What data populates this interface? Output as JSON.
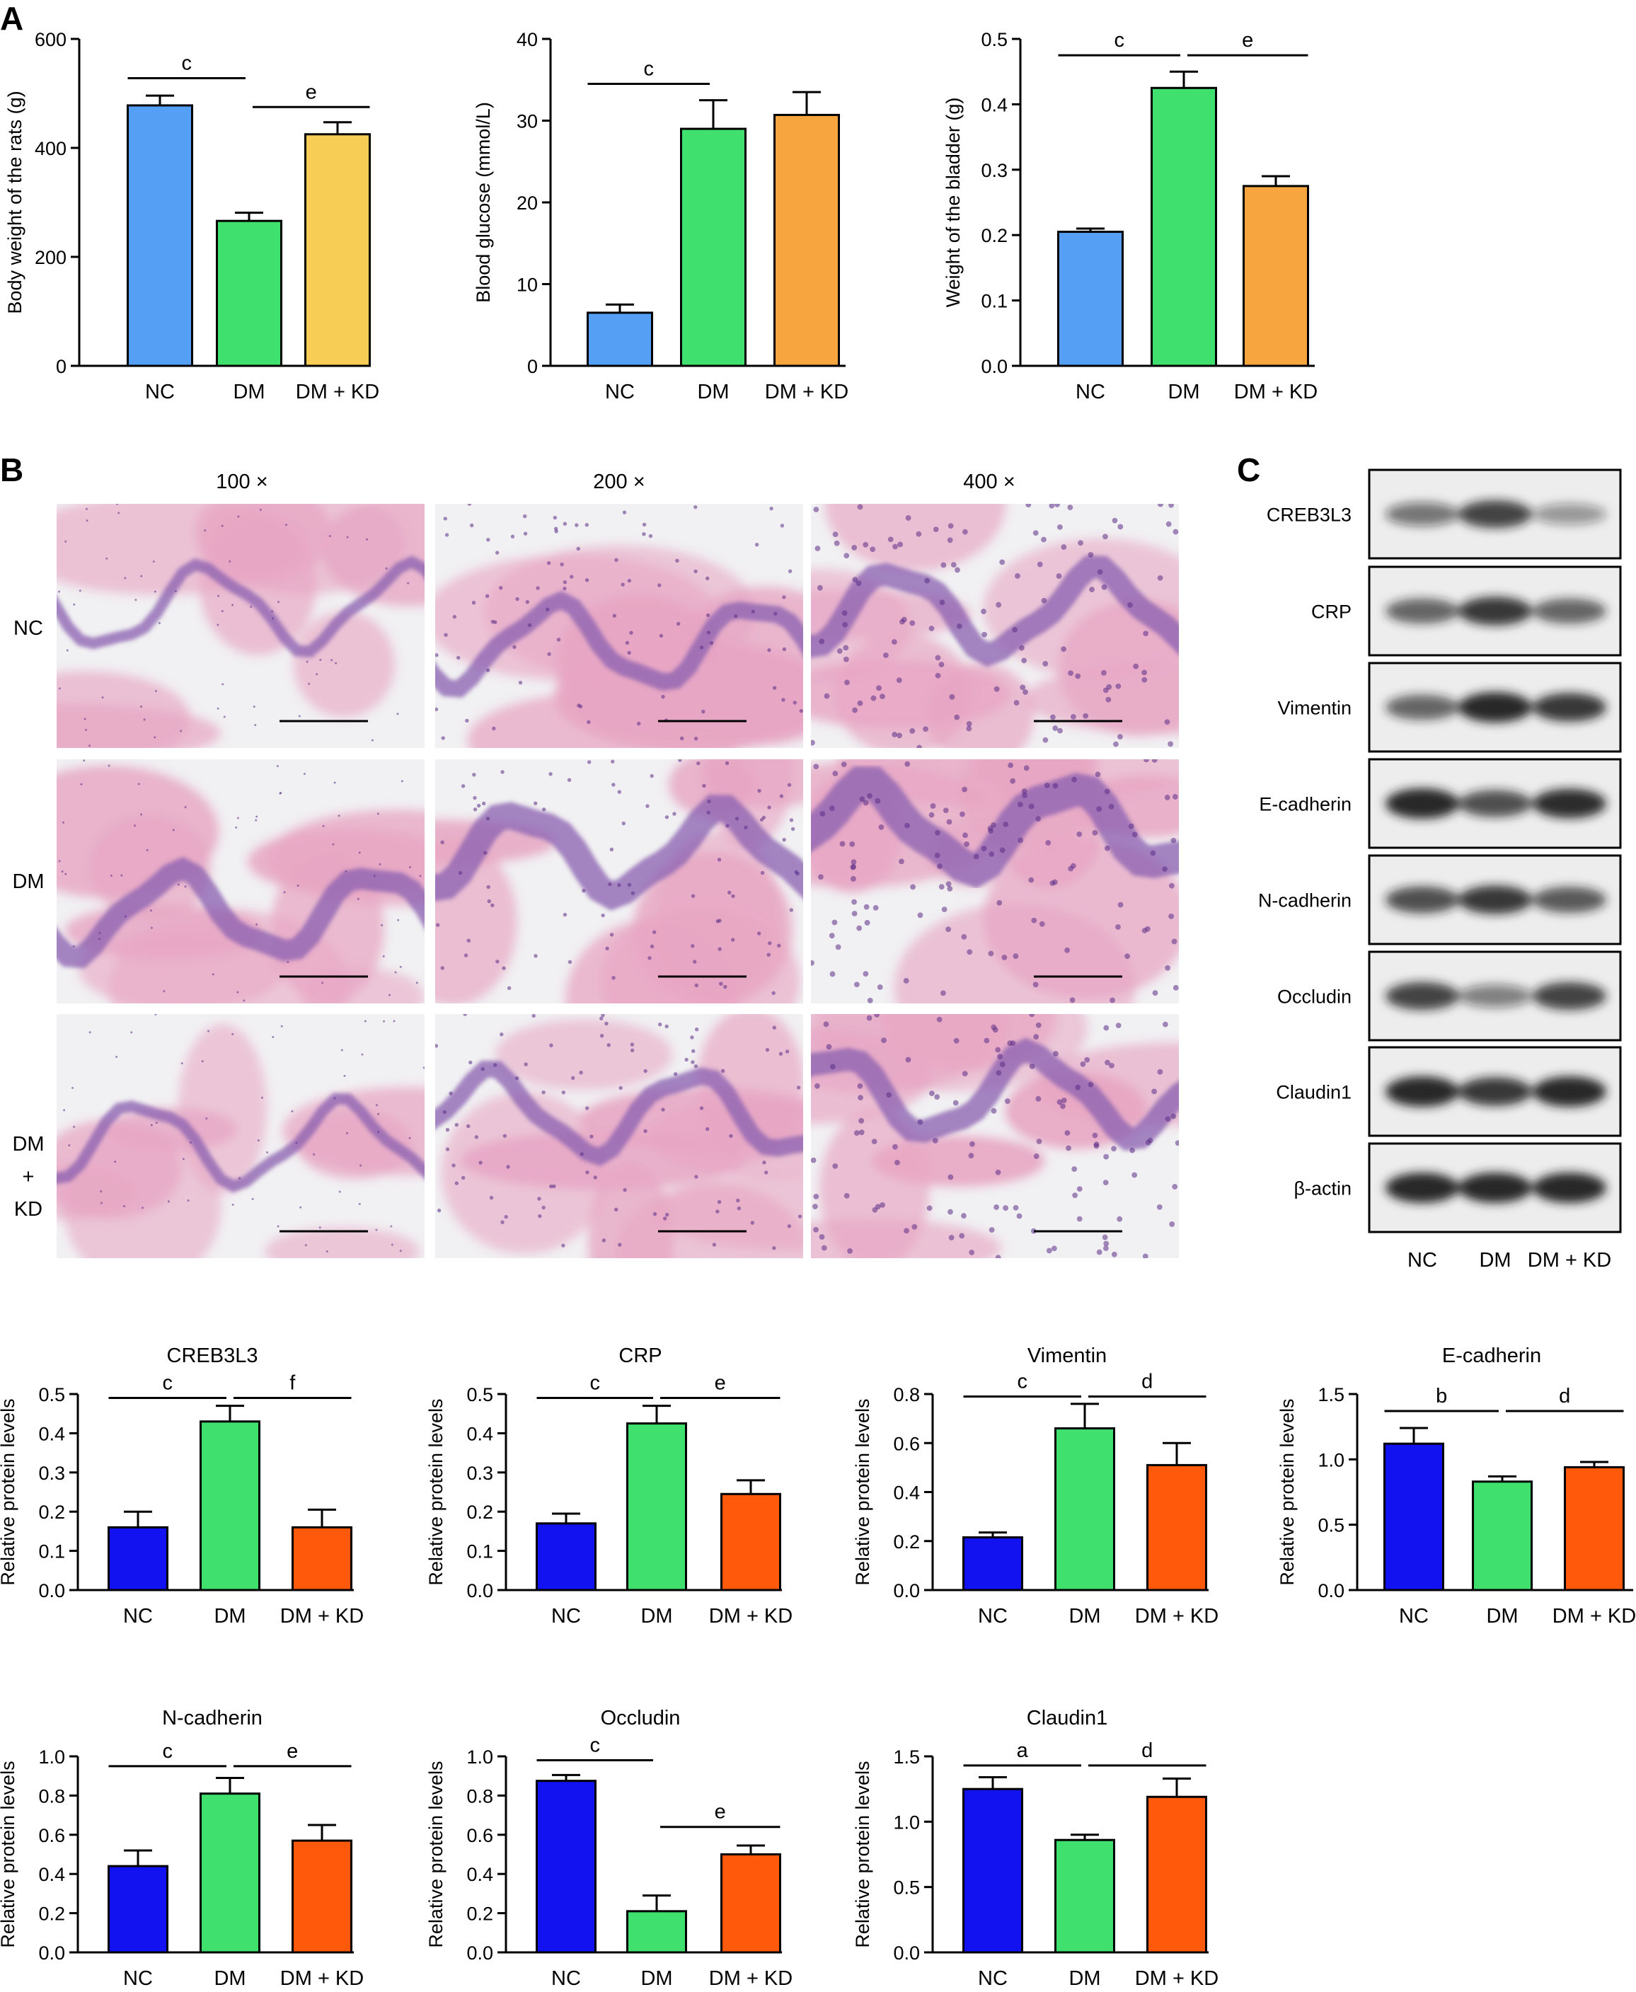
{
  "panel_labels": {
    "A": "A",
    "B": "B",
    "C": "C"
  },
  "colors": {
    "nc_blue_a": "#55A0F5",
    "dm_green": "#3FE06E",
    "dmkd_yellow": "#F8CD55",
    "dmkd_orange": "#F7A63F",
    "nc_blue_c": "#1212F0",
    "dmkd_red": "#FF5A0C",
    "tissue_pink": "#E7A6C3",
    "tissue_purple": "#8A5FB0",
    "blot_band": "#1A1A1A"
  },
  "histology": {
    "column_headers": [
      "100 ×",
      "200 ×",
      "400 ×"
    ],
    "row_labels": [
      [
        "NC"
      ],
      [
        "DM"
      ],
      [
        "DM",
        "+",
        "KD"
      ]
    ]
  },
  "western_blot": {
    "proteins": [
      "CREB3L3",
      "CRP",
      "Vimentin",
      "E-cadherin",
      "N-cadherin",
      "Occludin",
      "Claudin1",
      "β-actin"
    ],
    "lanes": [
      "NC",
      "DM",
      "DM + KD"
    ],
    "band_intensity": [
      [
        0.55,
        0.8,
        0.4
      ],
      [
        0.65,
        0.85,
        0.65
      ],
      [
        0.65,
        0.95,
        0.85
      ],
      [
        0.95,
        0.75,
        0.9
      ],
      [
        0.75,
        0.85,
        0.7
      ],
      [
        0.8,
        0.5,
        0.8
      ],
      [
        0.95,
        0.85,
        0.95
      ],
      [
        0.95,
        0.95,
        0.95
      ]
    ]
  },
  "chart_data": [
    {
      "type": "bar",
      "title": "",
      "ylabel": "Body weight of the rats (g)",
      "categories": [
        "NC",
        "DM",
        "DM + KD"
      ],
      "values": [
        478,
        266,
        425
      ],
      "errors": [
        18,
        15,
        22
      ],
      "ylim": [
        0,
        600
      ],
      "yticks": [
        "0",
        "200",
        "400",
        "600"
      ],
      "colors": [
        "#55A0F5",
        "#3FE06E",
        "#F8CD55"
      ],
      "sig": [
        {
          "from": 0,
          "to": 1,
          "label": "c",
          "y": 528
        },
        {
          "from": 1,
          "to": 2,
          "label": "e",
          "y": 475
        }
      ]
    },
    {
      "type": "bar",
      "title": "",
      "ylabel": "Blood glucose (mmol/L)",
      "categories": [
        "NC",
        "DM",
        "DM + KD"
      ],
      "values": [
        6.5,
        29,
        30.7
      ],
      "errors": [
        1,
        3.5,
        2.8
      ],
      "ylim": [
        0,
        40
      ],
      "yticks": [
        "0",
        "10",
        "20",
        "30",
        "40"
      ],
      "colors": [
        "#55A0F5",
        "#3FE06E",
        "#F7A63F"
      ],
      "sig": [
        {
          "from": 0,
          "to": 1,
          "label": "c",
          "y": 34.5
        }
      ]
    },
    {
      "type": "bar",
      "title": "",
      "ylabel": "Weight of the bladder (g)",
      "categories": [
        "NC",
        "DM",
        "DM + KD"
      ],
      "values": [
        0.205,
        0.425,
        0.275
      ],
      "errors": [
        0.005,
        0.025,
        0.015
      ],
      "ylim": [
        0,
        0.5
      ],
      "yticks": [
        "0.0",
        "0.1",
        "0.2",
        "0.3",
        "0.4",
        "0.5"
      ],
      "colors": [
        "#55A0F5",
        "#3FE06E",
        "#F7A63F"
      ],
      "sig": [
        {
          "from": 0,
          "to": 1,
          "label": "c",
          "y": 0.475
        },
        {
          "from": 1,
          "to": 2,
          "label": "e",
          "y": 0.475
        }
      ]
    },
    {
      "type": "bar",
      "title": "CREB3L3",
      "ylabel": "Relative protein levels",
      "categories": [
        "NC",
        "DM",
        "DM + KD"
      ],
      "values": [
        0.16,
        0.43,
        0.16
      ],
      "errors": [
        0.04,
        0.04,
        0.045
      ],
      "ylim": [
        0,
        0.5
      ],
      "yticks": [
        "0.0",
        "0.1",
        "0.2",
        "0.3",
        "0.4",
        "0.5"
      ],
      "colors": [
        "#1212F0",
        "#3FE06E",
        "#FF5A0C"
      ],
      "sig": [
        {
          "from": 0,
          "to": 1,
          "label": "c",
          "y": 0.49
        },
        {
          "from": 1,
          "to": 2,
          "label": "f",
          "y": 0.49
        }
      ]
    },
    {
      "type": "bar",
      "title": "CRP",
      "ylabel": "Relative protein levels",
      "categories": [
        "NC",
        "DM",
        "DM + KD"
      ],
      "values": [
        0.17,
        0.425,
        0.245
      ],
      "errors": [
        0.025,
        0.045,
        0.035
      ],
      "ylim": [
        0,
        0.5
      ],
      "yticks": [
        "0.0",
        "0.1",
        "0.2",
        "0.3",
        "0.4",
        "0.5"
      ],
      "colors": [
        "#1212F0",
        "#3FE06E",
        "#FF5A0C"
      ],
      "sig": [
        {
          "from": 0,
          "to": 1,
          "label": "c",
          "y": 0.49
        },
        {
          "from": 1,
          "to": 2,
          "label": "e",
          "y": 0.49
        }
      ]
    },
    {
      "type": "bar",
      "title": "Vimentin",
      "ylabel": "Relative protein levels",
      "categories": [
        "NC",
        "DM",
        "DM + KD"
      ],
      "values": [
        0.215,
        0.66,
        0.51
      ],
      "errors": [
        0.02,
        0.1,
        0.09
      ],
      "ylim": [
        0,
        0.8
      ],
      "yticks": [
        "0.0",
        "0.2",
        "0.4",
        "0.6",
        "0.8"
      ],
      "colors": [
        "#1212F0",
        "#3FE06E",
        "#FF5A0C"
      ],
      "sig": [
        {
          "from": 0,
          "to": 1,
          "label": "c",
          "y": 0.79
        },
        {
          "from": 1,
          "to": 2,
          "label": "d",
          "y": 0.79
        }
      ]
    },
    {
      "type": "bar",
      "title": "E-cadherin",
      "ylabel": "Relative protein levels",
      "categories": [
        "NC",
        "DM",
        "DM + KD"
      ],
      "values": [
        1.12,
        0.83,
        0.94
      ],
      "errors": [
        0.12,
        0.04,
        0.04
      ],
      "ylim": [
        0,
        1.5
      ],
      "yticks": [
        "0.0",
        "0.5",
        "1.0",
        "1.5"
      ],
      "colors": [
        "#1212F0",
        "#3FE06E",
        "#FF5A0C"
      ],
      "sig": [
        {
          "from": 0,
          "to": 1,
          "label": "b",
          "y": 1.37
        },
        {
          "from": 1,
          "to": 2,
          "label": "d",
          "y": 1.37
        }
      ]
    },
    {
      "type": "bar",
      "title": "N-cadherin",
      "ylabel": "Relative protein levels",
      "categories": [
        "NC",
        "DM",
        "DM + KD"
      ],
      "values": [
        0.44,
        0.81,
        0.57
      ],
      "errors": [
        0.08,
        0.08,
        0.08
      ],
      "ylim": [
        0,
        1.0
      ],
      "yticks": [
        "0.0",
        "0.2",
        "0.4",
        "0.6",
        "0.8",
        "1.0"
      ],
      "colors": [
        "#1212F0",
        "#3FE06E",
        "#FF5A0C"
      ],
      "sig": [
        {
          "from": 0,
          "to": 1,
          "label": "c",
          "y": 0.95
        },
        {
          "from": 1,
          "to": 2,
          "label": "e",
          "y": 0.95
        }
      ]
    },
    {
      "type": "bar",
      "title": "Occludin",
      "ylabel": "Relative protein levels",
      "categories": [
        "NC",
        "DM",
        "DM + KD"
      ],
      "values": [
        0.875,
        0.21,
        0.5
      ],
      "errors": [
        0.03,
        0.08,
        0.045
      ],
      "ylim": [
        0,
        1.0
      ],
      "yticks": [
        "0.0",
        "0.2",
        "0.4",
        "0.6",
        "0.8",
        "1.0"
      ],
      "colors": [
        "#1212F0",
        "#3FE06E",
        "#FF5A0C"
      ],
      "sig": [
        {
          "from": 0,
          "to": 1,
          "label": "c",
          "y": 0.98
        },
        {
          "from": 1,
          "to": 2,
          "label": "e",
          "y": 0.64
        }
      ]
    },
    {
      "type": "bar",
      "title": "Claudin1",
      "ylabel": "Relative protein levels",
      "categories": [
        "NC",
        "DM",
        "DM + KD"
      ],
      "values": [
        1.25,
        0.86,
        1.19
      ],
      "errors": [
        0.09,
        0.04,
        0.14
      ],
      "ylim": [
        0,
        1.5
      ],
      "yticks": [
        "0.0",
        "0.5",
        "1.0",
        "1.5"
      ],
      "colors": [
        "#1212F0",
        "#3FE06E",
        "#FF5A0C"
      ],
      "sig": [
        {
          "from": 0,
          "to": 1,
          "label": "a",
          "y": 1.43
        },
        {
          "from": 1,
          "to": 2,
          "label": "d",
          "y": 1.43
        }
      ]
    }
  ]
}
